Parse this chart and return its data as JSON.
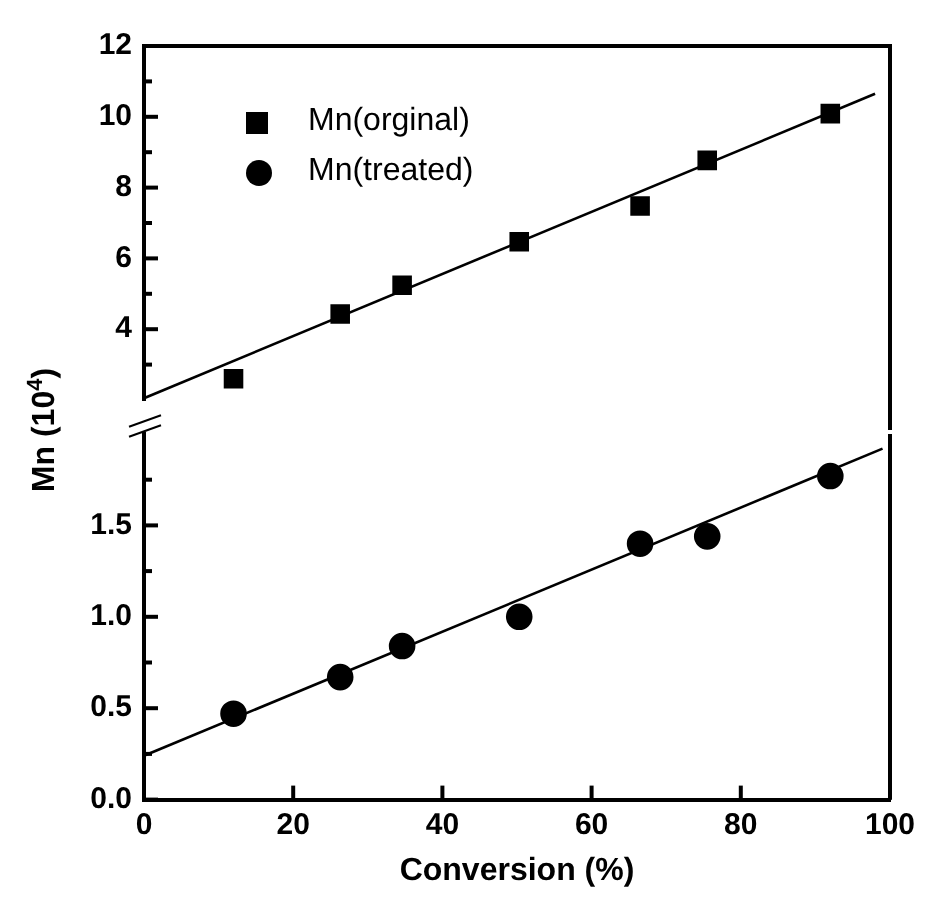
{
  "chart_data": [
    {
      "type": "scatter",
      "ylabel": "Mn (10$^{4}$)",
      "xlim": [
        0,
        100
      ],
      "ylim": [
        2,
        12
      ],
      "yticks": [
        {
          "value": 3,
          "label": null
        },
        4,
        {
          "value": 5,
          "label": null
        },
        6,
        {
          "value": 7,
          "label": null
        },
        8,
        {
          "value": 9,
          "label": null
        },
        10,
        {
          "value": 11,
          "label": null
        },
        12
      ],
      "tick_labels": "y",
      "grid": false,
      "legend": "top left",
      "series": [
        {
          "name": "Mn(orginal)",
          "color": "#000000",
          "marker": "square",
          "x": [
            12,
            26.3,
            34.6,
            50.3,
            66.5,
            75.5,
            92
          ],
          "values": [
            2.6,
            4.43,
            5.24,
            6.47,
            7.48,
            8.77,
            10.09
          ]
        },
        {
          "type": "line",
          "color": "#000000",
          "marker": "none",
          "x": [
            0,
            98
          ],
          "values": [
            2.05,
            10.65
          ]
        }
      ]
    },
    {
      "type": "scatter",
      "xlabel": "Conversion (%)",
      "xlim": [
        0,
        100
      ],
      "xticks": [
        0,
        20,
        40,
        60,
        80,
        100
      ],
      "ylim": [
        0,
        2
      ],
      "yticks": [
        {
          "value": 0,
          "label": "0.0"
        },
        {
          "value": 0.25,
          "label": null
        },
        0.5,
        {
          "value": 0.75,
          "label": null
        },
        {
          "value": 1,
          "label": "1.0"
        },
        {
          "value": 1.25,
          "label": null
        },
        1.5,
        {
          "value": 1.75,
          "label": null
        }
      ],
      "grid": false,
      "legend": "top left",
      "series": [
        {
          "name": "Mn(treated)",
          "color": "#000000",
          "marker": "circle",
          "x": [
            12,
            26.3,
            34.6,
            50.3,
            66.5,
            75.5,
            92
          ],
          "values": [
            0.47,
            0.67,
            0.84,
            1.0,
            1.4,
            1.44,
            1.77
          ]
        },
        {
          "type": "line",
          "color": "#000000",
          "marker": "none",
          "x": [
            0,
            99
          ],
          "values": [
            0.24,
            1.92
          ]
        }
      ]
    }
  ]
}
